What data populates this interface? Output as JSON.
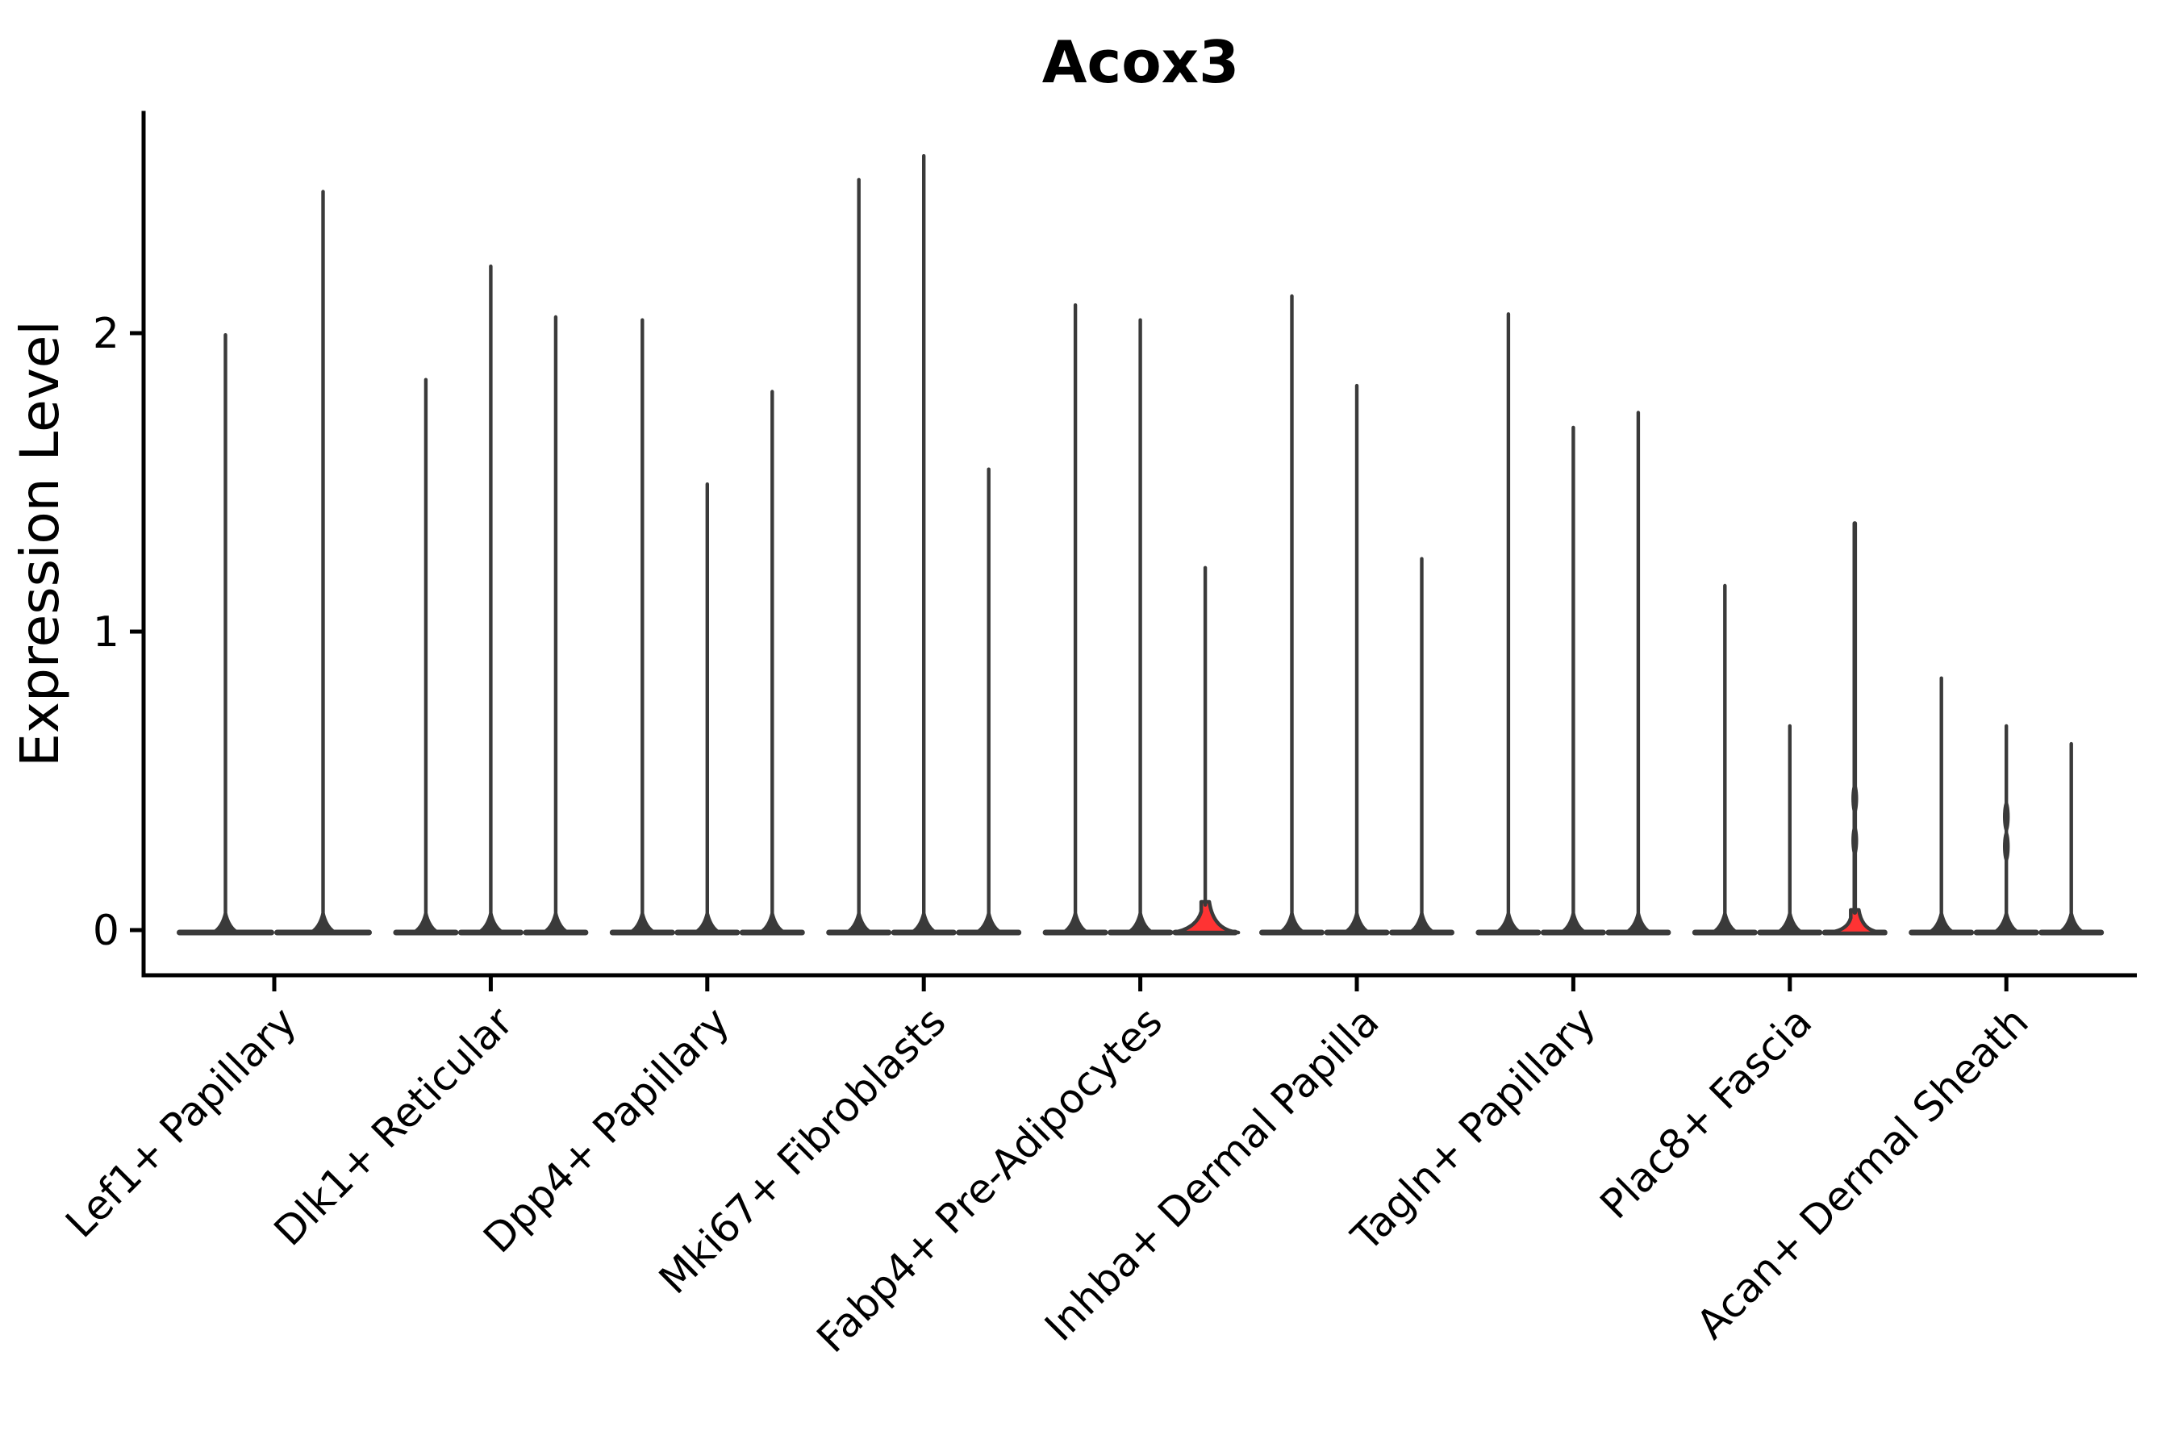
{
  "chart_data": {
    "type": "violin",
    "title": "Acox3",
    "ylabel": "Expression Level",
    "xlabel": "",
    "ylim": [
      -0.15,
      2.74
    ],
    "yticks": [
      0,
      1,
      2
    ],
    "grid": false,
    "legend": null,
    "categories": [
      "Lef1+ Papillary",
      "Dlk1+ Reticular",
      "Dpp4+ Papillary",
      "Mki67+ Fibroblasts",
      "Fabp4+ Pre-Adipocytes",
      "Inhba+ Dermal Papilla",
      "Tagln+ Papillary",
      "Plac8+ Fascia",
      "Acan+ Dermal Sheath"
    ],
    "series": [
      {
        "category": "Lef1+ Papillary",
        "violins": [
          {
            "max": 2.0
          },
          {
            "max": 2.48
          }
        ]
      },
      {
        "category": "Dlk1+ Reticular",
        "violins": [
          {
            "max": 1.85
          },
          {
            "max": 2.23
          },
          {
            "max": 2.06
          }
        ]
      },
      {
        "category": "Dpp4+ Papillary",
        "violins": [
          {
            "max": 2.05
          },
          {
            "max": 1.5
          },
          {
            "max": 1.81
          }
        ]
      },
      {
        "category": "Mki67+ Fibroblasts",
        "violins": [
          {
            "max": 2.52
          },
          {
            "max": 2.6
          },
          {
            "max": 1.55
          }
        ]
      },
      {
        "category": "Fabp4+ Pre-Adipocytes",
        "violins": [
          {
            "max": 2.1
          },
          {
            "max": 2.05
          },
          {
            "max": 1.22,
            "highlighted": true,
            "base_peak": "large"
          }
        ]
      },
      {
        "category": "Inhba+ Dermal Papilla",
        "violins": [
          {
            "max": 2.13
          },
          {
            "max": 1.83
          },
          {
            "max": 1.25
          }
        ]
      },
      {
        "category": "Tagln+ Papillary",
        "violins": [
          {
            "max": 2.07
          },
          {
            "max": 1.69
          },
          {
            "max": 1.74
          }
        ]
      },
      {
        "category": "Plac8+ Fascia",
        "violins": [
          {
            "max": 1.16
          },
          {
            "max": 0.69
          },
          {
            "max": 1.37,
            "highlighted": true,
            "base_peak": "small",
            "thick": true,
            "knots": [
              0.3,
              0.44
            ]
          }
        ]
      },
      {
        "category": "Acan+ Dermal Sheath",
        "violins": [
          {
            "max": 0.85
          },
          {
            "max": 0.69,
            "knots": [
              0.28,
              0.38
            ]
          },
          {
            "max": 0.63
          }
        ]
      }
    ],
    "colors": {
      "violin_stroke": "#3a3a3a",
      "highlight_fill": "#ff3333",
      "axis": "#000000",
      "text": "#000000",
      "background": "#ffffff"
    }
  }
}
